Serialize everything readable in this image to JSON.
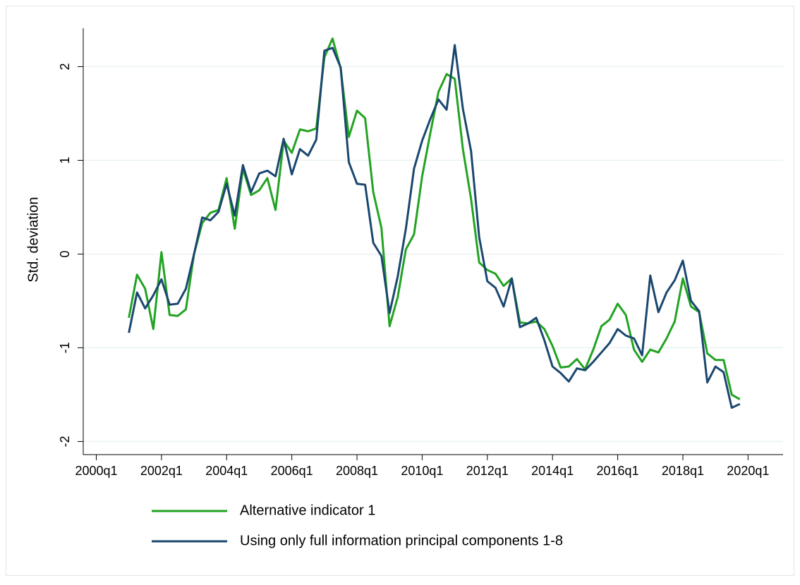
{
  "chart_data": {
    "type": "line",
    "y_label": "Std. deviation",
    "x": [
      "2001q1",
      "2001q2",
      "2001q3",
      "2001q4",
      "2002q1",
      "2002q2",
      "2002q3",
      "2002q4",
      "2003q1",
      "2003q2",
      "2003q3",
      "2003q4",
      "2004q1",
      "2004q2",
      "2004q3",
      "2004q4",
      "2005q1",
      "2005q2",
      "2005q3",
      "2005q4",
      "2006q1",
      "2006q2",
      "2006q3",
      "2006q4",
      "2007q1",
      "2007q2",
      "2007q3",
      "2007q4",
      "2008q1",
      "2008q2",
      "2008q3",
      "2008q4",
      "2009q1",
      "2009q2",
      "2009q3",
      "2009q4",
      "2010q1",
      "2010q2",
      "2010q3",
      "2010q4",
      "2011q1",
      "2011q2",
      "2011q3",
      "2011q4",
      "2012q1",
      "2012q2",
      "2012q3",
      "2012q4",
      "2013q1",
      "2013q2",
      "2013q3",
      "2013q4",
      "2014q1",
      "2014q2",
      "2014q3",
      "2014q4",
      "2015q1",
      "2015q2",
      "2015q3",
      "2015q4",
      "2016q1",
      "2016q2",
      "2016q3",
      "2016q4",
      "2017q1",
      "2017q2",
      "2017q3",
      "2017q4",
      "2018q1",
      "2018q2",
      "2018q3",
      "2018q4",
      "2019q1",
      "2019q2",
      "2019q3",
      "2019q4"
    ],
    "series": [
      {
        "name": "Alternative indicator 1",
        "color": "#22a322",
        "values": [
          -0.68,
          -0.22,
          -0.37,
          -0.8,
          0.02,
          -0.65,
          -0.66,
          -0.59,
          0.0,
          0.33,
          0.44,
          0.47,
          0.81,
          0.27,
          0.91,
          0.63,
          0.68,
          0.81,
          0.47,
          1.21,
          1.08,
          1.33,
          1.31,
          1.34,
          2.1,
          2.3,
          1.98,
          1.25,
          1.53,
          1.45,
          0.66,
          0.28,
          -0.77,
          -0.46,
          0.05,
          0.21,
          0.83,
          1.29,
          1.73,
          1.92,
          1.87,
          1.12,
          0.59,
          -0.09,
          -0.17,
          -0.21,
          -0.34,
          -0.26,
          -0.73,
          -0.74,
          -0.72,
          -0.8,
          -0.98,
          -1.21,
          -1.2,
          -1.12,
          -1.23,
          -1.02,
          -0.77,
          -0.7,
          -0.53,
          -0.65,
          -1.02,
          -1.15,
          -1.02,
          -1.05,
          -0.9,
          -0.72,
          -0.26,
          -0.56,
          -0.62,
          -1.06,
          -1.13,
          -1.13,
          -1.5,
          -1.55
        ]
      },
      {
        "name": "Using only full information principal components 1-8",
        "color": "#1a476f",
        "values": [
          -0.84,
          -0.41,
          -0.58,
          -0.44,
          -0.27,
          -0.54,
          -0.53,
          -0.37,
          0.0,
          0.39,
          0.36,
          0.45,
          0.75,
          0.41,
          0.95,
          0.66,
          0.86,
          0.89,
          0.83,
          1.23,
          0.85,
          1.12,
          1.05,
          1.22,
          2.17,
          2.2,
          1.99,
          0.98,
          0.75,
          0.74,
          0.12,
          -0.02,
          -0.63,
          -0.24,
          0.27,
          0.91,
          1.21,
          1.44,
          1.65,
          1.54,
          2.23,
          1.55,
          1.1,
          0.18,
          -0.29,
          -0.36,
          -0.56,
          -0.26,
          -0.78,
          -0.74,
          -0.68,
          -0.92,
          -1.2,
          -1.27,
          -1.36,
          -1.22,
          -1.24,
          -1.15,
          -1.05,
          -0.95,
          -0.8,
          -0.87,
          -0.9,
          -1.08,
          -0.23,
          -0.62,
          -0.41,
          -0.28,
          -0.07,
          -0.5,
          -0.61,
          -1.37,
          -1.2,
          -1.26,
          -1.64,
          -1.6
        ]
      }
    ],
    "xlim": [
      158.4,
      244.3
    ],
    "xticks": [
      {
        "value": 160,
        "label": "2000q1"
      },
      {
        "value": 168,
        "label": "2002q1"
      },
      {
        "value": 176,
        "label": "2004q1"
      },
      {
        "value": 184,
        "label": "2006q1"
      },
      {
        "value": 192,
        "label": "2008q1"
      },
      {
        "value": 200,
        "label": "2010q1"
      },
      {
        "value": 208,
        "label": "2012q1"
      },
      {
        "value": 216,
        "label": "2014q1"
      },
      {
        "value": 224,
        "label": "2016q1"
      },
      {
        "value": 232,
        "label": "2018q1"
      },
      {
        "value": 240,
        "label": "2020q1"
      }
    ],
    "ylim": [
      -2.14,
      2.41
    ],
    "yticks": [
      -2,
      -1,
      0,
      1,
      2
    ],
    "grid": true
  }
}
